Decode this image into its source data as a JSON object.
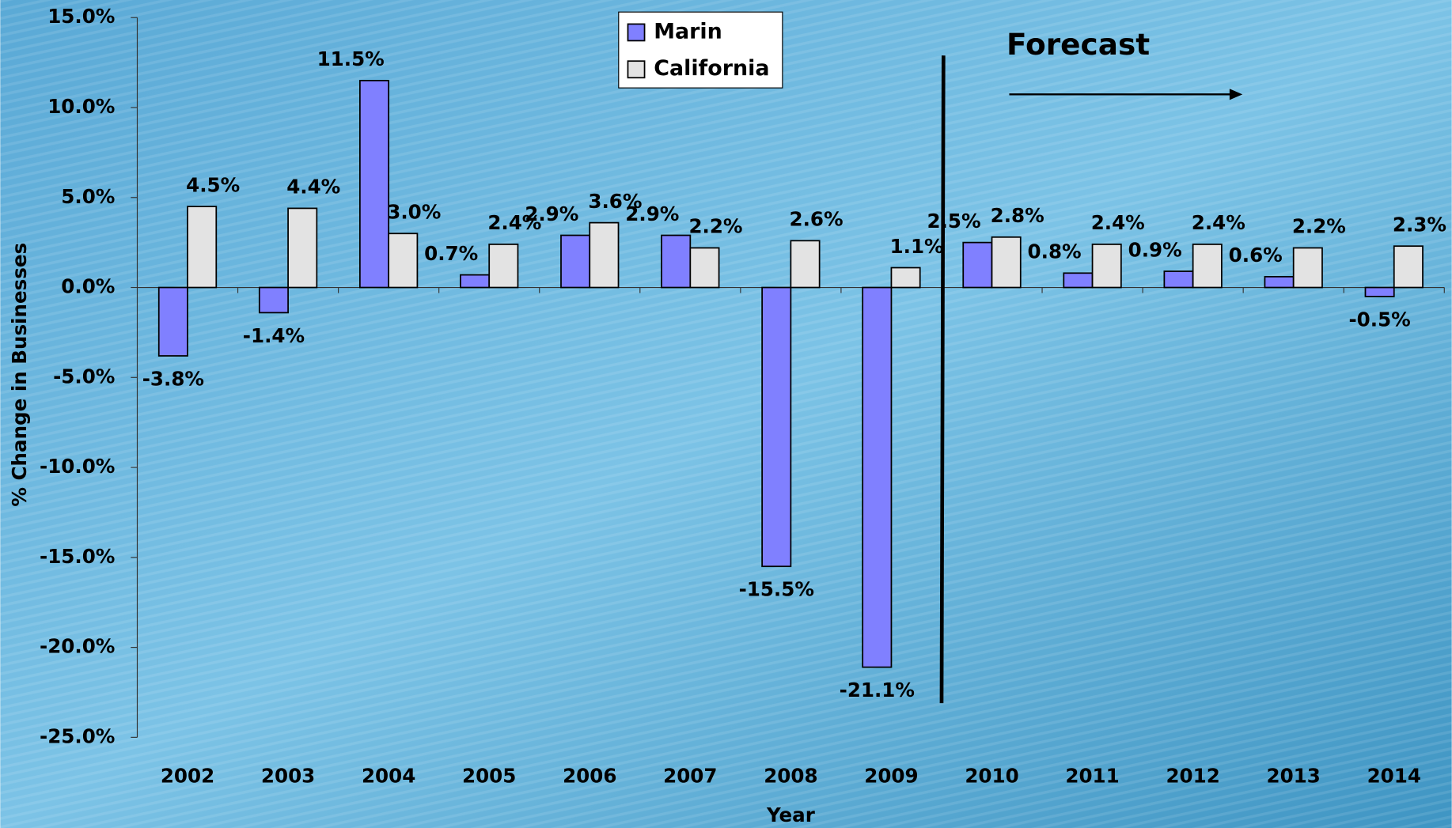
{
  "chart_data": {
    "type": "bar",
    "y_label": "% Change in Businesses",
    "x_label": "Year",
    "annotation": "Forecast",
    "categories": [
      "2002",
      "2003",
      "2004",
      "2005",
      "2006",
      "2007",
      "2008",
      "2009",
      "2010",
      "2011",
      "2012",
      "2013",
      "2014"
    ],
    "series": [
      {
        "name": "Marin",
        "color": "#8080ff",
        "values": [
          -3.8,
          -1.4,
          11.5,
          0.7,
          2.9,
          2.9,
          -15.5,
          -21.1,
          2.5,
          0.8,
          0.9,
          0.6,
          -0.5
        ],
        "value_labels": [
          "-3.8%",
          "-1.4%",
          "11.5%",
          "0.7%",
          "2.9%",
          "2.9%",
          "-15.5%",
          "-21.1%",
          "2.5%",
          "0.8%",
          "0.9%",
          "0.6%",
          "-0.5%"
        ]
      },
      {
        "name": "California",
        "color": "#e3e3e3",
        "values": [
          4.5,
          4.4,
          3.0,
          2.4,
          3.6,
          2.2,
          2.6,
          1.1,
          2.8,
          2.4,
          2.4,
          2.2,
          2.3
        ],
        "value_labels": [
          "4.5%",
          "4.4%",
          "3.0%",
          "2.4%",
          "3.6%",
          "2.2%",
          "2.6%",
          "1.1%",
          "2.8%",
          "2.4%",
          "2.4%",
          "2.2%",
          "2.3%"
        ]
      }
    ],
    "ylim": [
      -25,
      15
    ],
    "yticks": [
      {
        "value": -25,
        "label": "-25.0%"
      },
      {
        "value": -20,
        "label": "-20.0%"
      },
      {
        "value": -15,
        "label": "-15.0%"
      },
      {
        "value": -10,
        "label": "-10.0%"
      },
      {
        "value": -5,
        "label": "-5.0%"
      },
      {
        "value": 0,
        "label": "0.0%"
      },
      {
        "value": 5,
        "label": "5.0%"
      },
      {
        "value": 10,
        "label": "10.0%"
      },
      {
        "value": 15,
        "label": "15.0%"
      }
    ],
    "legend": "top"
  }
}
